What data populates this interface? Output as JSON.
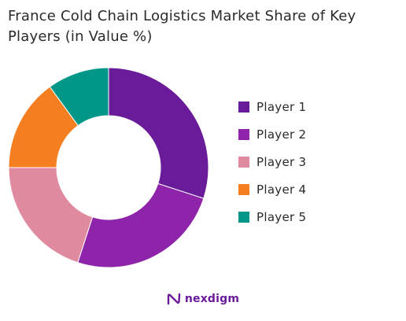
{
  "chart_data": {
    "type": "pie",
    "title": "France Cold Chain Logistics Market Share of Key Players (in Value %)",
    "categories": [
      "Player 1",
      "Player 2",
      "Player 3",
      "Player 4",
      "Player 5"
    ],
    "values": [
      30,
      25,
      20,
      15,
      10
    ],
    "colors": [
      "#6a1b9a",
      "#8e24aa",
      "#e08aa0",
      "#f57f20",
      "#009688"
    ],
    "donut": true,
    "legend": "right"
  },
  "brand": {
    "name": "nexdigm",
    "color": "#6a1b9a"
  }
}
